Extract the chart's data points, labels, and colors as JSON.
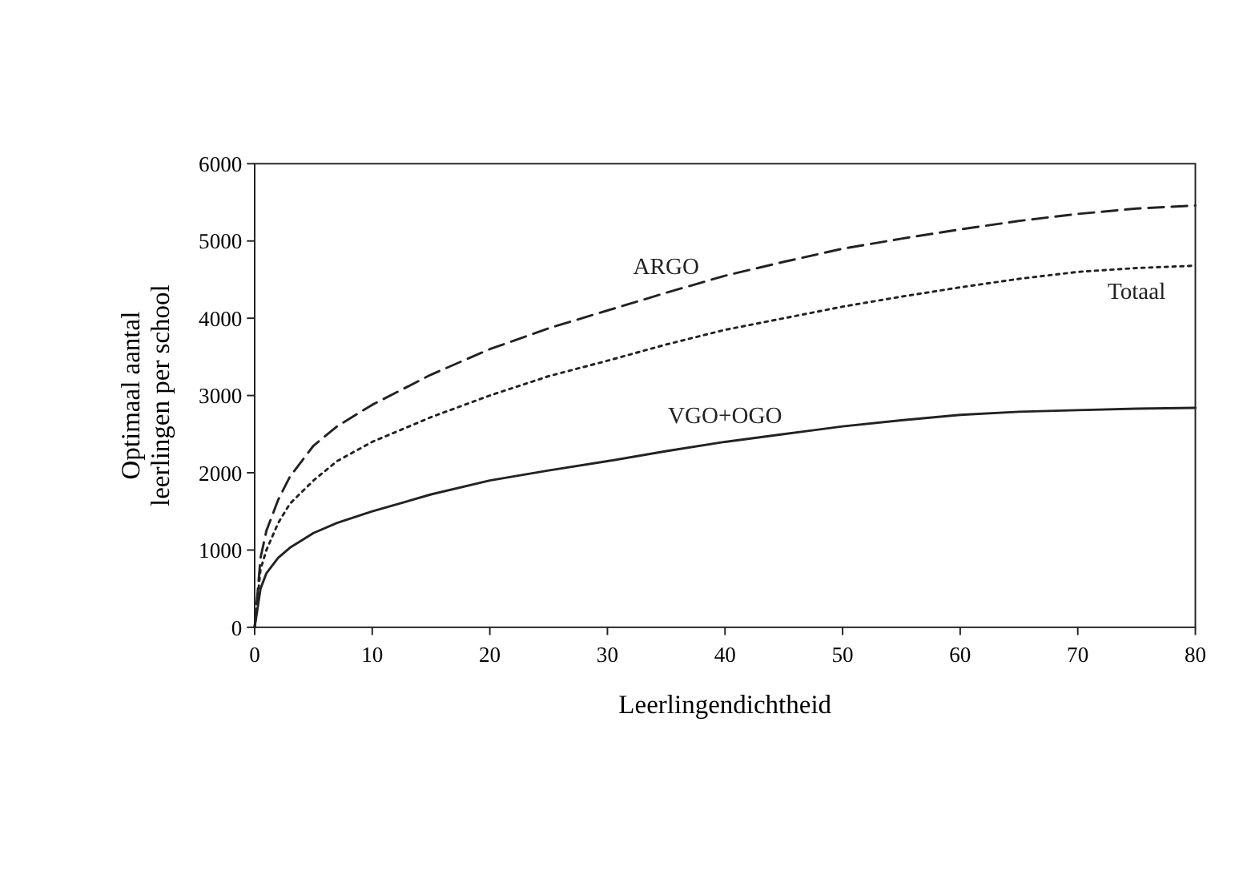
{
  "chart_data": {
    "type": "line",
    "xlabel": "Leerlingendichtheid",
    "ylabel": "Optimaal aantal\nleerlingen per school",
    "xlim": [
      0,
      80
    ],
    "ylim": [
      0,
      6000
    ],
    "xticks": [
      0,
      10,
      20,
      30,
      40,
      50,
      60,
      70,
      80
    ],
    "yticks": [
      0,
      1000,
      2000,
      3000,
      4000,
      5000,
      6000
    ],
    "x": [
      0,
      0.5,
      1,
      2,
      3,
      5,
      7,
      10,
      15,
      20,
      25,
      30,
      35,
      40,
      45,
      50,
      55,
      60,
      65,
      70,
      75,
      80
    ],
    "series": [
      {
        "name": "ARGO",
        "color": "#222222",
        "line_style": "dashed",
        "values": [
          0,
          900,
          1250,
          1650,
          1950,
          2350,
          2600,
          2880,
          3270,
          3600,
          3870,
          4100,
          4330,
          4550,
          4730,
          4900,
          5030,
          5150,
          5260,
          5350,
          5420,
          5460
        ]
      },
      {
        "name": "Totaal",
        "color": "#222222",
        "line_style": "dotted",
        "values": [
          0,
          750,
          1000,
          1350,
          1600,
          1900,
          2150,
          2400,
          2720,
          3000,
          3250,
          3450,
          3660,
          3850,
          4000,
          4150,
          4280,
          4400,
          4510,
          4600,
          4650,
          4680
        ]
      },
      {
        "name": "VGO+OGO",
        "color": "#222222",
        "line_style": "solid",
        "values": [
          0,
          500,
          700,
          900,
          1030,
          1220,
          1350,
          1500,
          1720,
          1900,
          2030,
          2150,
          2280,
          2400,
          2500,
          2600,
          2680,
          2750,
          2790,
          2810,
          2830,
          2840
        ]
      }
    ]
  }
}
